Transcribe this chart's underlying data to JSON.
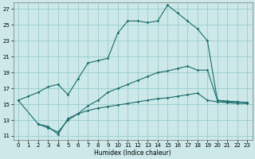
{
  "xlabel": "Humidex (Indice chaleur)",
  "bg_color": "#cde8e8",
  "grid_color": "#99cccc",
  "line_color": "#1a6b6b",
  "xlim": [
    -0.5,
    23.5
  ],
  "ylim": [
    10.5,
    27.8
  ],
  "xticks": [
    0,
    1,
    2,
    3,
    4,
    5,
    6,
    7,
    8,
    9,
    10,
    11,
    12,
    13,
    14,
    15,
    16,
    17,
    18,
    19,
    20,
    21,
    22,
    23
  ],
  "yticks": [
    11,
    13,
    15,
    17,
    19,
    21,
    23,
    25,
    27
  ],
  "line1_x": [
    0,
    1,
    2,
    3,
    4,
    5,
    6,
    7,
    8,
    9,
    10,
    11,
    12,
    13,
    14,
    15,
    16,
    17,
    18,
    19,
    20,
    21,
    22,
    23
  ],
  "line1_y": [
    15.5,
    16.0,
    16.5,
    17.2,
    17.5,
    16.2,
    18.2,
    20.2,
    20.5,
    20.8,
    24.0,
    25.5,
    25.5,
    25.3,
    25.5,
    27.5,
    26.5,
    25.5,
    24.5,
    23.0,
    15.5,
    15.4,
    15.3,
    15.2
  ],
  "line2_x": [
    2,
    3,
    4,
    5,
    6,
    7,
    8,
    9,
    10,
    11,
    12,
    13,
    14,
    15,
    16,
    17,
    18,
    19,
    20,
    21,
    22,
    23
  ],
  "line2_y": [
    12.5,
    12.0,
    11.5,
    13.0,
    13.8,
    14.8,
    15.5,
    16.5,
    17.0,
    17.5,
    18.0,
    18.5,
    19.0,
    19.2,
    19.5,
    19.8,
    19.3,
    19.3,
    15.5,
    15.3,
    15.3,
    15.2
  ],
  "line3_x": [
    0,
    2,
    3,
    4,
    5,
    6,
    7,
    8,
    9,
    10,
    11,
    12,
    13,
    14,
    15,
    16,
    17,
    18,
    19,
    20,
    21,
    22,
    23
  ],
  "line3_y": [
    15.5,
    12.5,
    12.2,
    11.2,
    13.2,
    13.8,
    14.2,
    14.5,
    14.7,
    14.9,
    15.1,
    15.3,
    15.5,
    15.7,
    15.8,
    16.0,
    16.2,
    16.4,
    15.5,
    15.3,
    15.2,
    15.1,
    15.1
  ]
}
